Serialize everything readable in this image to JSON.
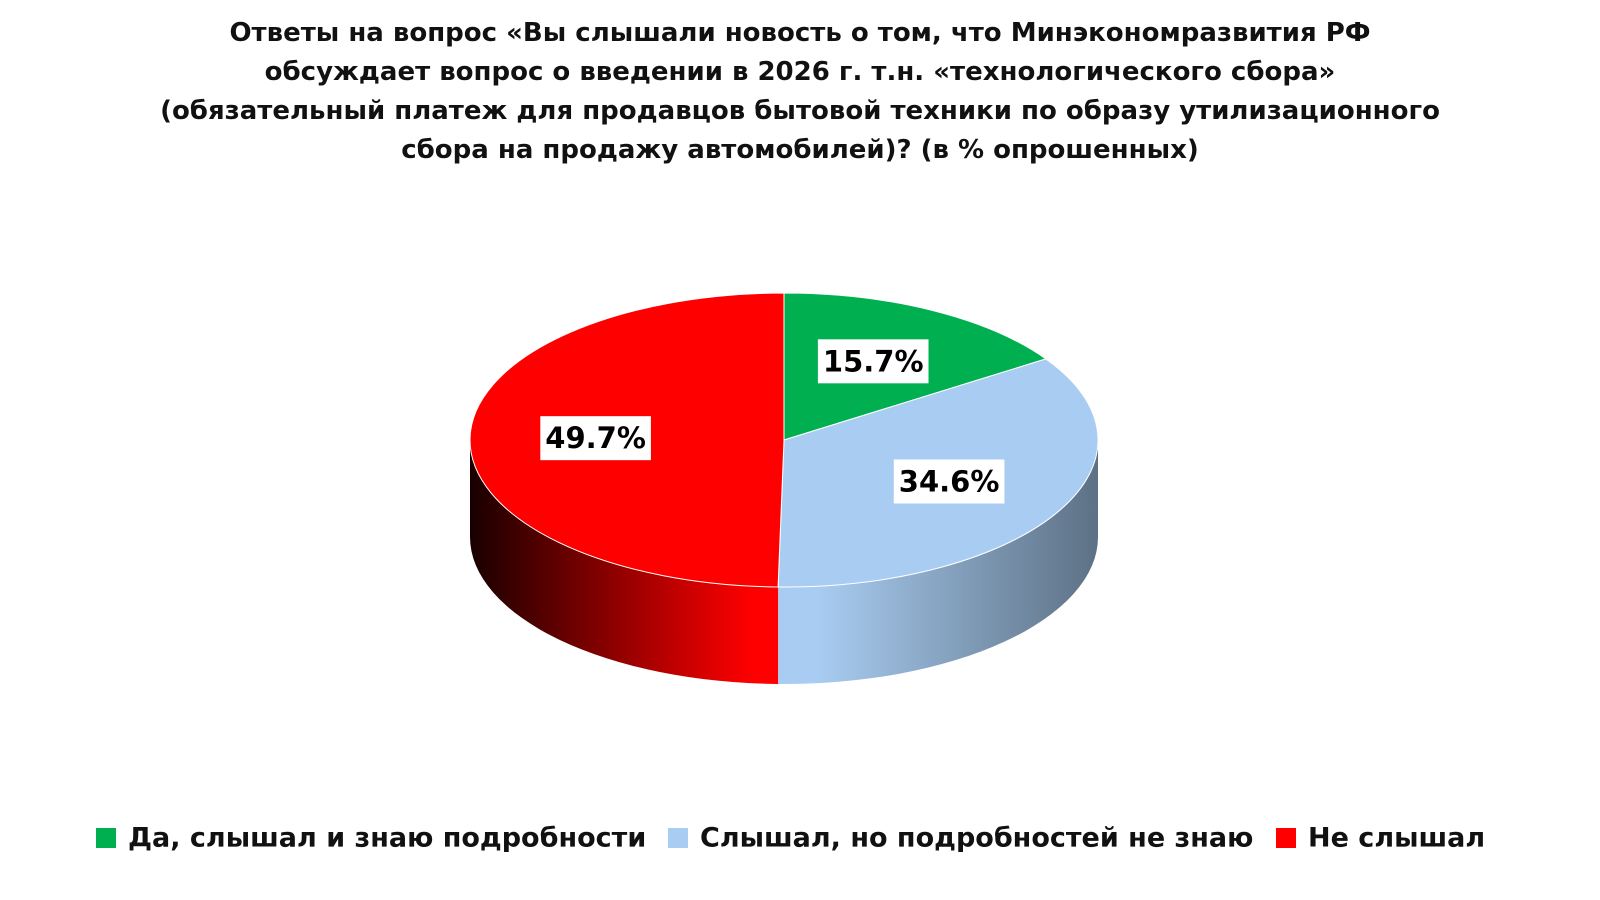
{
  "chart_data": {
    "type": "pie3d",
    "title": "Ответы на вопрос «Вы слышали новость о том, что Минэкономразвития РФ обсуждает вопрос о введении в 2026 г. т.н. «технологического сбора» (обязательный платеж для продавцов бытовой техники по образу утилизационного сбора на продажу автомобилей)? (в % опрошенных)",
    "categories": [
      "Да, слышал и знаю подробности",
      "Слышал, но подробностей не знаю",
      "Не слышал"
    ],
    "values": [
      15.7,
      34.6,
      49.7
    ],
    "value_labels": [
      "15.7%",
      "34.6%",
      "49.7%"
    ],
    "colors": [
      "#00b050",
      "#a9cdf2",
      "#ff0000"
    ],
    "legend": "bottom"
  }
}
